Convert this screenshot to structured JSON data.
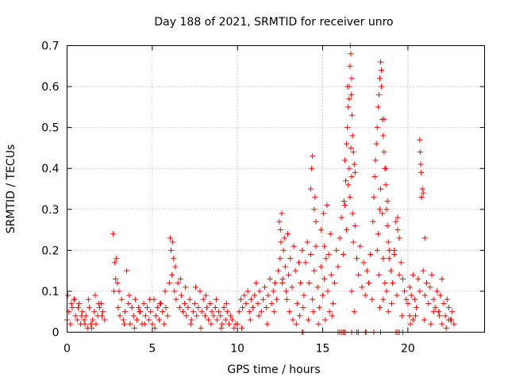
{
  "chart_data": {
    "type": "scatter",
    "title": "Day 188 of 2021, SRMTID for receiver unro",
    "xlabel": "GPS time / hours",
    "ylabel": "SRMTID / TECUs",
    "xlim": [
      0,
      24.5
    ],
    "ylim": [
      0,
      0.7
    ],
    "x_ticks": [
      0,
      5,
      10,
      15,
      20
    ],
    "y_ticks": [
      0,
      0.1,
      0.2,
      0.3,
      0.4,
      0.5,
      0.6,
      0.7
    ],
    "x_tick_labels": [
      "0",
      "5",
      "10",
      "15",
      "20"
    ],
    "y_tick_labels": [
      "0",
      "0.1",
      "0.2",
      "0.3",
      "0.4",
      "0.5",
      "0.6",
      "0.7"
    ],
    "grid": true,
    "marker": "plus",
    "series_color": "#ff0000",
    "series": [
      {
        "name": "SRMTID",
        "x": [
          0.0,
          0.1,
          0.2,
          0.3,
          0.4,
          0.5,
          0.6,
          0.7,
          0.8,
          0.9,
          1.0,
          1.1,
          1.2,
          1.3,
          1.4,
          1.5,
          1.6,
          1.7,
          1.8,
          1.9,
          2.0,
          2.1,
          2.2,
          0.05,
          0.25,
          0.45,
          0.65,
          0.85,
          1.05,
          1.25,
          1.45,
          1.65,
          1.85,
          2.05,
          2.7,
          2.75,
          2.8,
          2.85,
          2.9,
          2.95,
          3.0,
          3.1,
          3.2,
          3.3,
          3.4,
          3.5,
          3.6,
          3.7,
          3.8,
          3.9,
          4.0,
          4.1,
          4.2,
          4.3,
          4.4,
          4.5,
          4.6,
          4.7,
          4.8,
          4.9,
          5.0,
          5.1,
          5.2,
          5.3,
          5.4,
          5.5,
          5.6,
          5.7,
          5.8,
          5.9,
          3.05,
          3.35,
          3.65,
          3.95,
          4.25,
          4.55,
          4.85,
          5.15,
          5.45,
          5.75,
          6.0,
          6.05,
          6.1,
          6.15,
          6.2,
          6.25,
          6.3,
          6.4,
          6.5,
          6.6,
          6.7,
          6.8,
          6.9,
          7.0,
          7.1,
          7.2,
          7.3,
          7.4,
          7.5,
          7.6,
          7.7,
          7.8,
          7.9,
          8.0,
          8.1,
          8.2,
          8.3,
          8.4,
          8.5,
          8.6,
          8.7,
          8.8,
          8.9,
          9.0,
          9.1,
          9.2,
          9.3,
          9.4,
          9.5,
          9.6,
          9.7,
          9.8,
          9.9,
          6.35,
          6.65,
          6.95,
          7.25,
          7.55,
          7.85,
          8.15,
          8.45,
          8.75,
          9.05,
          9.35,
          10.0,
          10.1,
          10.2,
          10.3,
          10.4,
          10.5,
          10.6,
          10.7,
          10.8,
          10.9,
          11.0,
          11.1,
          11.2,
          11.3,
          11.4,
          11.5,
          11.6,
          11.7,
          11.8,
          11.9,
          12.0,
          12.1,
          12.2,
          12.3,
          10.25,
          10.75,
          11.25,
          11.75,
          12.15,
          12.4,
          12.45,
          12.5,
          12.55,
          12.6,
          12.65,
          12.7,
          12.8,
          12.9,
          13.0,
          13.1,
          13.2,
          13.3,
          13.4,
          13.5,
          13.6,
          13.7,
          13.8,
          13.9,
          12.52,
          12.62,
          12.75,
          12.85,
          12.95,
          13.05,
          13.25,
          13.45,
          13.65,
          13.85,
          14.0,
          14.1,
          14.2,
          14.3,
          14.4,
          14.5,
          14.6,
          14.7,
          14.8,
          14.9,
          15.0,
          15.1,
          15.2,
          15.3,
          15.4,
          15.5,
          15.6,
          15.7,
          14.3,
          14.35,
          14.4,
          14.5,
          14.55,
          14.6,
          14.9,
          15.05,
          15.1,
          15.25,
          15.35,
          15.45,
          14.15,
          14.45,
          14.75,
          15.15,
          15.55,
          15.8,
          15.9,
          16.0,
          16.1,
          16.2,
          16.3,
          16.4,
          16.5,
          16.55,
          16.6,
          16.65,
          16.7,
          16.75,
          16.8,
          16.9,
          17.0,
          17.1,
          17.2,
          17.3,
          17.4,
          17.5,
          17.6,
          17.7,
          17.8,
          17.9,
          16.25,
          16.3,
          16.35,
          16.4,
          16.45,
          16.5,
          16.55,
          16.6,
          16.62,
          16.65,
          16.68,
          16.7,
          16.72,
          16.75,
          16.8,
          16.85,
          16.9,
          16.45,
          16.55,
          16.7,
          16.85,
          17.95,
          18.0,
          18.05,
          18.1,
          18.15,
          18.2,
          18.25,
          18.3,
          18.35,
          18.4,
          18.45,
          18.5,
          18.55,
          18.6,
          18.65,
          18.7,
          18.75,
          18.8,
          18.85,
          18.9,
          19.0,
          19.1,
          19.2,
          19.3,
          19.4,
          19.5,
          19.6,
          19.7,
          19.8,
          19.9,
          18.2,
          18.25,
          18.3,
          18.35,
          18.4,
          18.45,
          18.5,
          18.55,
          18.6,
          18.65,
          18.7,
          18.75,
          18.8,
          18.9,
          19.2,
          19.4,
          19.5,
          18.35,
          18.55,
          18.85,
          19.05,
          19.35,
          19.65,
          20.0,
          20.1,
          20.2,
          20.3,
          20.4,
          20.5,
          20.6,
          20.7,
          20.8,
          20.9,
          21.0,
          21.1,
          21.2,
          21.3,
          21.4,
          21.5,
          21.6,
          21.7,
          21.8,
          21.9,
          22.0,
          22.1,
          22.2,
          22.3,
          22.4,
          22.5,
          22.6,
          22.7,
          20.7,
          20.72,
          20.75,
          20.78,
          20.8,
          20.85,
          20.9,
          21.0,
          20.1,
          20.3,
          21.5,
          22.0,
          22.4,
          20.15,
          20.45,
          20.95,
          21.35,
          21.85,
          22.25,
          22.55,
          13.8,
          13.85,
          15.9,
          16.0,
          16.1,
          16.2,
          16.3,
          16.7,
          17.0,
          17.1,
          17.5,
          17.55,
          18.0,
          18.4,
          19.3,
          19.4,
          19.5,
          19.7
        ],
        "y": [
          0.03,
          0.05,
          0.02,
          0.06,
          0.08,
          0.04,
          0.03,
          0.07,
          0.02,
          0.05,
          0.03,
          0.04,
          0.01,
          0.06,
          0.02,
          0.03,
          0.05,
          0.02,
          0.04,
          0.06,
          0.07,
          0.05,
          0.03,
          0.09,
          0.07,
          0.08,
          0.06,
          0.04,
          0.02,
          0.08,
          0.01,
          0.09,
          0.07,
          0.04,
          0.24,
          0.1,
          0.17,
          0.13,
          0.18,
          0.12,
          0.06,
          0.04,
          0.08,
          0.03,
          0.05,
          0.15,
          0.07,
          0.02,
          0.06,
          0.04,
          0.08,
          0.03,
          0.06,
          0.05,
          0.02,
          0.07,
          0.04,
          0.06,
          0.03,
          0.05,
          0.02,
          0.08,
          0.04,
          0.06,
          0.03,
          0.07,
          0.05,
          0.02,
          0.06,
          0.04,
          0.1,
          0.02,
          0.09,
          0.01,
          0.05,
          0.02,
          0.08,
          0.01,
          0.07,
          0.1,
          0.12,
          0.23,
          0.2,
          0.14,
          0.22,
          0.18,
          0.1,
          0.08,
          0.12,
          0.06,
          0.09,
          0.05,
          0.07,
          0.04,
          0.06,
          0.08,
          0.03,
          0.05,
          0.07,
          0.04,
          0.06,
          0.1,
          0.05,
          0.08,
          0.04,
          0.06,
          0.03,
          0.07,
          0.05,
          0.04,
          0.06,
          0.03,
          0.05,
          0.04,
          0.02,
          0.06,
          0.03,
          0.05,
          0.02,
          0.04,
          0.03,
          0.01,
          0.02,
          0.16,
          0.13,
          0.11,
          0.02,
          0.11,
          0.01,
          0.09,
          0.02,
          0.08,
          0.01,
          0.07,
          0.02,
          0.05,
          0.08,
          0.06,
          0.09,
          0.07,
          0.1,
          0.05,
          0.08,
          0.06,
          0.09,
          0.12,
          0.07,
          0.1,
          0.05,
          0.08,
          0.11,
          0.06,
          0.09,
          0.13,
          0.07,
          0.1,
          0.12,
          0.08,
          0.01,
          0.03,
          0.04,
          0.02,
          0.05,
          0.15,
          0.27,
          0.18,
          0.22,
          0.29,
          0.13,
          0.2,
          0.16,
          0.08,
          0.14,
          0.18,
          0.11,
          0.21,
          0.15,
          0.07,
          0.17,
          0.12,
          0.2,
          0.09,
          0.25,
          0.12,
          0.23,
          0.1,
          0.24,
          0.05,
          0.03,
          0.02,
          0.04,
          0.06,
          0.17,
          0.22,
          0.12,
          0.19,
          0.08,
          0.15,
          0.21,
          0.11,
          0.06,
          0.16,
          0.09,
          0.13,
          0.18,
          0.1,
          0.05,
          0.14,
          0.07,
          0.12,
          0.35,
          0.4,
          0.43,
          0.3,
          0.33,
          0.27,
          0.25,
          0.29,
          0.21,
          0.31,
          0.19,
          0.24,
          0.03,
          0.05,
          0.02,
          0.03,
          0.04,
          0.2,
          0.16,
          0.23,
          0.28,
          0.19,
          0.31,
          0.25,
          0.36,
          0.4,
          0.33,
          0.45,
          0.38,
          0.29,
          0.22,
          0.26,
          0.18,
          0.14,
          0.21,
          0.11,
          0.17,
          0.09,
          0.15,
          0.12,
          0.19,
          0.08,
          0.32,
          0.42,
          0.37,
          0.46,
          0.5,
          0.55,
          0.6,
          0.65,
          0.7,
          0.68,
          0.58,
          0.62,
          0.53,
          0.48,
          0.44,
          0.41,
          0.39,
          0.6,
          0.57,
          0.1,
          0.05,
          0.27,
          0.33,
          0.38,
          0.42,
          0.46,
          0.5,
          0.55,
          0.58,
          0.62,
          0.66,
          0.6,
          0.52,
          0.48,
          0.44,
          0.4,
          0.36,
          0.3,
          0.26,
          0.22,
          0.18,
          0.15,
          0.12,
          0.2,
          0.27,
          0.25,
          0.23,
          0.17,
          0.13,
          0.1,
          0.08,
          0.2,
          0.24,
          0.14,
          0.3,
          0.35,
          0.64,
          0.29,
          0.18,
          0.52,
          0.12,
          0.4,
          0.1,
          0.32,
          0.2,
          0.19,
          0.28,
          0.14,
          0.06,
          0.08,
          0.05,
          0.07,
          0.09,
          0.04,
          0.07,
          0.11,
          0.09,
          0.14,
          0.08,
          0.06,
          0.13,
          0.1,
          0.33,
          0.15,
          0.09,
          0.12,
          0.07,
          0.11,
          0.14,
          0.08,
          0.06,
          0.1,
          0.05,
          0.09,
          0.13,
          0.07,
          0.04,
          0.08,
          0.06,
          0.03,
          0.05,
          0.02,
          0.47,
          0.44,
          0.41,
          0.39,
          0.33,
          0.35,
          0.34,
          0.23,
          0.04,
          0.03,
          0.05,
          0.02,
          0.03,
          0.02,
          0.04,
          0.03,
          0.02,
          0.04,
          0.01,
          0.03,
          0.0,
          0.0,
          0.0,
          0.0,
          0.0,
          0.0,
          0.0,
          0.0,
          0.0,
          0.0,
          0.0,
          0.0,
          0.0,
          0.0,
          0.0,
          0.0,
          0.0,
          0.0
        ]
      }
    ]
  }
}
